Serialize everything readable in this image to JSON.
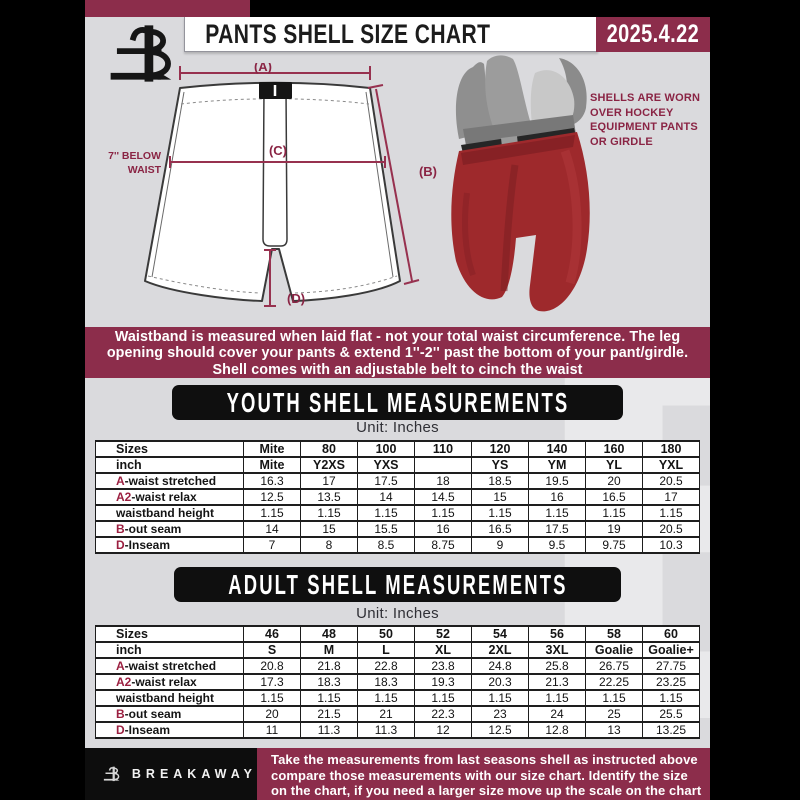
{
  "header": {
    "title": "PANTS SHELL SIZE CHART",
    "date": "2025.4.22",
    "brand": "BREAKAWAY"
  },
  "colors": {
    "maroon": "#8C2D4B",
    "accent_text": "#8a2444",
    "table_accent": "#9b1f40",
    "background_gray": "#dadadd",
    "pants_red": "#9e292c",
    "heading_black": "#0f0f0f"
  },
  "diagram": {
    "label_a": "(A)",
    "label_b": "(B)",
    "label_c": "(C)",
    "label_d": "(D)",
    "side_label": "7'' BELOW WAIST",
    "note": "SHELLS ARE WORN OVER HOCKEY EQUIPMENT PANTS OR GIRDLE"
  },
  "banner": {
    "lines": [
      "Waistband is measured when laid flat - not your total waist circumference. The leg",
      "opening should cover your pants & extend 1''-2'' past the bottom of your pant/girdle.",
      "Shell comes with an adjustable belt to cinch the waist"
    ]
  },
  "youth": {
    "heading": "YOUTH SHELL MEASUREMENTS",
    "unit": "Unit: Inches",
    "rows": [
      {
        "header": true,
        "accent": "",
        "label": "Sizes",
        "values": [
          "Mite",
          "80",
          "100",
          "110",
          "120",
          "140",
          "160",
          "180"
        ]
      },
      {
        "header": true,
        "accent": "",
        "label": "inch",
        "values": [
          "Mite",
          "Y2XS",
          "YXS",
          "",
          "YS",
          "YM",
          "YL",
          "YXL"
        ]
      },
      {
        "header": false,
        "accent": "A",
        "label": "-waist stretched",
        "values": [
          "16.3",
          "17",
          "17.5",
          "18",
          "18.5",
          "19.5",
          "20",
          "20.5"
        ]
      },
      {
        "header": false,
        "accent": "A2",
        "label": "-waist relax",
        "values": [
          "12.5",
          "13.5",
          "14",
          "14.5",
          "15",
          "16",
          "16.5",
          "17"
        ]
      },
      {
        "header": false,
        "accent": "",
        "label": "waistband height",
        "values": [
          "1.15",
          "1.15",
          "1.15",
          "1.15",
          "1.15",
          "1.15",
          "1.15",
          "1.15"
        ]
      },
      {
        "header": false,
        "accent": "B",
        "label": "-out seam",
        "values": [
          "14",
          "15",
          "15.5",
          "16",
          "16.5",
          "17.5",
          "19",
          "20.5"
        ]
      },
      {
        "header": false,
        "accent": "D",
        "label": "-Inseam",
        "values": [
          "7",
          "8",
          "8.5",
          "8.75",
          "9",
          "9.5",
          "9.75",
          "10.3"
        ]
      }
    ]
  },
  "adult": {
    "heading": "ADULT SHELL MEASUREMENTS",
    "unit": "Unit: Inches",
    "rows": [
      {
        "header": true,
        "accent": "",
        "label": "Sizes",
        "values": [
          "46",
          "48",
          "50",
          "52",
          "54",
          "56",
          "58",
          "60"
        ]
      },
      {
        "header": true,
        "accent": "",
        "label": "inch",
        "values": [
          "S",
          "M",
          "L",
          "XL",
          "2XL",
          "3XL",
          "Goalie",
          "Goalie+"
        ]
      },
      {
        "header": false,
        "accent": "A",
        "label": "-waist stretched",
        "values": [
          "20.8",
          "21.8",
          "22.8",
          "23.8",
          "24.8",
          "25.8",
          "26.75",
          "27.75"
        ]
      },
      {
        "header": false,
        "accent": "A2",
        "label": "-waist relax",
        "values": [
          "17.3",
          "18.3",
          "18.3",
          "19.3",
          "20.3",
          "21.3",
          "22.25",
          "23.25"
        ]
      },
      {
        "header": false,
        "accent": "",
        "label": "waistband height",
        "values": [
          "1.15",
          "1.15",
          "1.15",
          "1.15",
          "1.15",
          "1.15",
          "1.15",
          "1.15"
        ]
      },
      {
        "header": false,
        "accent": "B",
        "label": "-out seam",
        "values": [
          "20",
          "21.5",
          "21",
          "22.3",
          "23",
          "24",
          "25",
          "25.5"
        ]
      },
      {
        "header": false,
        "accent": "D",
        "label": "-Inseam",
        "values": [
          "11",
          "11.3",
          "11.3",
          "12",
          "12.5",
          "12.8",
          "13",
          "13.25"
        ]
      }
    ]
  },
  "footer": {
    "lines": [
      "Take the measurements from last seasons shell as instructed above",
      "compare those measurements  with our size chart. Identify the size",
      "on the chart, if you need a larger size move up the scale on the chart"
    ]
  },
  "watermark_letter": "B"
}
